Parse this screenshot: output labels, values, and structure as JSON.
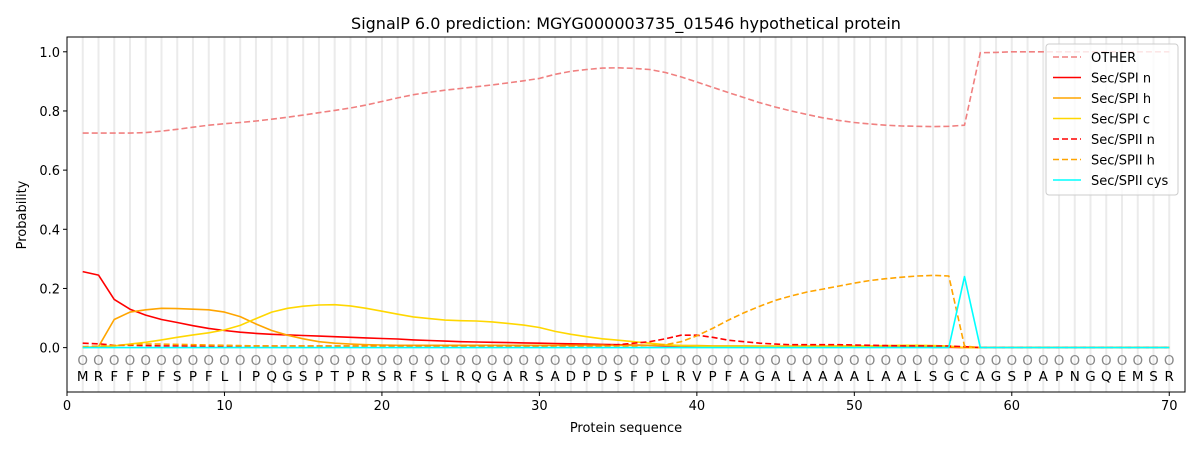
{
  "chart_data": {
    "type": "line",
    "title": "SignalP 6.0 prediction: MGYG000003735_01546 hypothetical protein",
    "xlabel": "Protein sequence",
    "ylabel": "Probability",
    "xlim": [
      0,
      71
    ],
    "ylim": [
      -0.15,
      1.05
    ],
    "xticks": [
      0,
      10,
      20,
      30,
      40,
      50,
      60,
      70
    ],
    "yticks": [
      "0.0",
      "0.2",
      "0.4",
      "0.6",
      "0.8",
      "1.0"
    ],
    "legend_position": "top-right",
    "sequence": [
      "M",
      "R",
      "F",
      "F",
      "P",
      "F",
      "S",
      "P",
      "F",
      "L",
      "I",
      "P",
      "Q",
      "G",
      "S",
      "P",
      "T",
      "P",
      "R",
      "S",
      "R",
      "F",
      "S",
      "L",
      "R",
      "Q",
      "G",
      "A",
      "R",
      "S",
      "A",
      "D",
      "P",
      "D",
      "S",
      "F",
      "P",
      "L",
      "R",
      "V",
      "P",
      "F",
      "A",
      "G",
      "A",
      "L",
      "A",
      "A",
      "A",
      "A",
      "L",
      "A",
      "A",
      "L",
      "S",
      "G",
      "C",
      "A",
      "G",
      "S",
      "P",
      "A",
      "P",
      "N",
      "G",
      "Q",
      "E",
      "M",
      "S",
      "R"
    ],
    "region_labels": "O",
    "series": [
      {
        "name": "OTHER",
        "color": "#f08080",
        "dash": true,
        "values": [
          0.725,
          0.725,
          0.725,
          0.725,
          0.727,
          0.732,
          0.738,
          0.745,
          0.752,
          0.757,
          0.761,
          0.766,
          0.772,
          0.779,
          0.786,
          0.794,
          0.802,
          0.81,
          0.82,
          0.832,
          0.844,
          0.855,
          0.863,
          0.87,
          0.876,
          0.882,
          0.888,
          0.895,
          0.902,
          0.91,
          0.924,
          0.934,
          0.94,
          0.945,
          0.946,
          0.944,
          0.94,
          0.93,
          0.915,
          0.898,
          0.88,
          0.862,
          0.845,
          0.828,
          0.813,
          0.8,
          0.788,
          0.777,
          0.768,
          0.761,
          0.756,
          0.752,
          0.749,
          0.748,
          0.747,
          0.748,
          0.752,
          0.997,
          0.998,
          1.0,
          1.0,
          1.0,
          1.0,
          1.0,
          1.0,
          1.0,
          1.0,
          1.0,
          1.0,
          1.0
        ]
      },
      {
        "name": "Sec/SPI n",
        "color": "#ff0000",
        "dash": false,
        "values": [
          0.257,
          0.245,
          0.163,
          0.13,
          0.11,
          0.095,
          0.085,
          0.074,
          0.065,
          0.058,
          0.052,
          0.048,
          0.045,
          0.043,
          0.041,
          0.039,
          0.037,
          0.035,
          0.033,
          0.031,
          0.029,
          0.026,
          0.024,
          0.022,
          0.02,
          0.019,
          0.018,
          0.017,
          0.016,
          0.015,
          0.014,
          0.013,
          0.012,
          0.011,
          0.01,
          0.009,
          0.008,
          0.006,
          0.005,
          0.004,
          0.003,
          0.003,
          0.003,
          0.003,
          0.003,
          0.002,
          0.002,
          0.002,
          0.002,
          0.002,
          0.002,
          0.002,
          0.002,
          0.002,
          0.001,
          0.001,
          0,
          0,
          0,
          0,
          0,
          0,
          0,
          0,
          0,
          0,
          0,
          0,
          0,
          0
        ]
      },
      {
        "name": "Sec/SPI h",
        "color": "#ffa500",
        "dash": false,
        "values": [
          0,
          0.003,
          0.095,
          0.12,
          0.128,
          0.133,
          0.132,
          0.13,
          0.128,
          0.12,
          0.105,
          0.08,
          0.058,
          0.042,
          0.03,
          0.02,
          0.015,
          0.012,
          0.01,
          0.009,
          0.008,
          0.008,
          0.008,
          0.008,
          0.008,
          0.008,
          0.008,
          0.008,
          0.008,
          0.008,
          0.008,
          0.008,
          0.008,
          0.008,
          0.008,
          0.008,
          0.008,
          0.008,
          0.007,
          0.007,
          0.006,
          0.006,
          0.006,
          0.005,
          0.005,
          0.005,
          0.005,
          0.005,
          0.005,
          0.005,
          0.005,
          0.005,
          0.004,
          0.004,
          0.004,
          0.003,
          0,
          0,
          0,
          0,
          0,
          0,
          0,
          0,
          0,
          0,
          0,
          0,
          0,
          0
        ]
      },
      {
        "name": "Sec/SPI c",
        "color": "#ffd700",
        "dash": false,
        "values": [
          0,
          0.003,
          0.006,
          0.012,
          0.018,
          0.026,
          0.035,
          0.043,
          0.05,
          0.06,
          0.075,
          0.098,
          0.12,
          0.133,
          0.14,
          0.144,
          0.145,
          0.141,
          0.133,
          0.123,
          0.113,
          0.104,
          0.098,
          0.093,
          0.091,
          0.09,
          0.087,
          0.082,
          0.076,
          0.068,
          0.055,
          0.045,
          0.037,
          0.03,
          0.025,
          0.02,
          0.015,
          0.01,
          0.007,
          0.005,
          0.004,
          0.004,
          0.004,
          0.004,
          0.004,
          0.004,
          0.004,
          0.004,
          0.005,
          0.005,
          0.006,
          0.007,
          0.008,
          0.008,
          0.007,
          0.005,
          0,
          0,
          0,
          0,
          0,
          0,
          0,
          0,
          0,
          0,
          0,
          0,
          0,
          0
        ]
      },
      {
        "name": "Sec/SPII n",
        "color": "#ff0000",
        "dash": true,
        "values": [
          0.015,
          0.013,
          0.008,
          0.008,
          0.007,
          0.006,
          0.006,
          0.005,
          0.005,
          0.005,
          0.005,
          0.005,
          0.005,
          0.005,
          0.005,
          0.005,
          0.005,
          0.005,
          0.005,
          0.005,
          0.005,
          0.005,
          0.005,
          0.005,
          0.005,
          0.005,
          0.005,
          0.005,
          0.005,
          0.005,
          0.006,
          0.006,
          0.006,
          0.006,
          0.01,
          0.015,
          0.02,
          0.03,
          0.042,
          0.042,
          0.035,
          0.025,
          0.02,
          0.015,
          0.012,
          0.01,
          0.01,
          0.01,
          0.01,
          0.009,
          0.008,
          0.007,
          0.006,
          0.006,
          0.005,
          0.005,
          0.003,
          0,
          0,
          0,
          0,
          0,
          0,
          0,
          0,
          0,
          0,
          0,
          0,
          0
        ]
      },
      {
        "name": "Sec/SPII h",
        "color": "#ffa500",
        "dash": true,
        "values": [
          0.003,
          0.005,
          0.008,
          0.01,
          0.012,
          0.012,
          0.011,
          0.01,
          0.009,
          0.008,
          0.007,
          0.006,
          0.005,
          0.005,
          0.005,
          0.005,
          0.005,
          0.005,
          0.005,
          0.005,
          0.005,
          0.005,
          0.005,
          0.005,
          0.005,
          0.005,
          0.005,
          0.005,
          0.005,
          0.005,
          0.005,
          0.005,
          0.005,
          0.005,
          0.005,
          0.005,
          0.008,
          0.01,
          0.02,
          0.04,
          0.065,
          0.093,
          0.118,
          0.14,
          0.16,
          0.175,
          0.188,
          0.198,
          0.208,
          0.218,
          0.227,
          0.233,
          0.238,
          0.242,
          0.244,
          0.242,
          0.005,
          0,
          0,
          0,
          0,
          0,
          0,
          0,
          0,
          0,
          0,
          0,
          0,
          0
        ]
      },
      {
        "name": "Sec/SPII cys",
        "color": "#00ffff",
        "dash": false,
        "values": [
          0,
          0,
          0,
          0,
          0,
          0,
          0,
          0,
          0,
          0,
          0,
          0,
          0,
          0,
          0,
          0,
          0,
          0,
          0,
          0,
          0,
          0,
          0,
          0,
          0,
          0,
          0,
          0,
          0,
          0,
          0,
          0,
          0,
          0,
          0,
          0,
          0,
          0,
          0,
          0,
          0,
          0,
          0,
          0,
          0,
          0,
          0,
          0,
          0,
          0,
          0,
          0,
          0,
          0,
          0,
          0,
          0.24,
          0,
          0,
          0,
          0,
          0,
          0,
          0,
          0,
          0,
          0,
          0,
          0,
          0
        ]
      }
    ]
  }
}
